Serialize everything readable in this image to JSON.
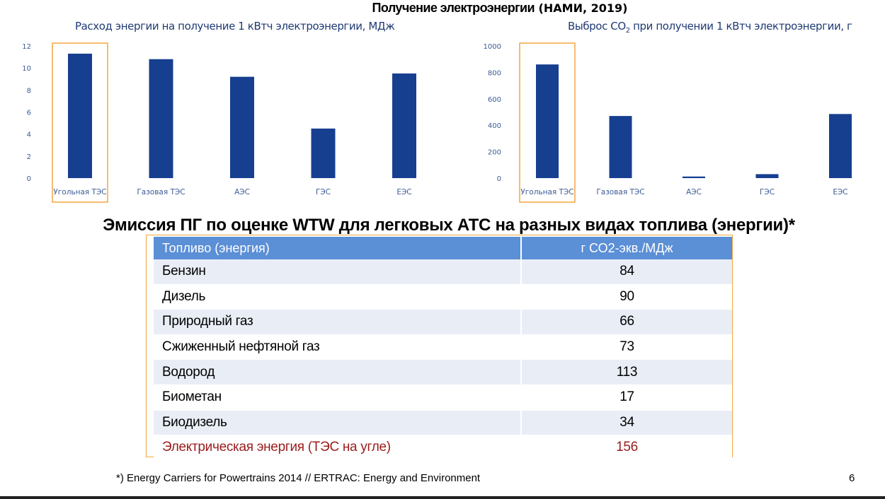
{
  "slide": {
    "title_main": "Получение электроэнергии",
    "title_source": " (НАМИ, 2019)",
    "section_title": "Эмиссия ПГ по оценке WTW для легковых АТС на разных видах топлива (энергии)*",
    "footnote": "*) Energy Carriers for Powertrains 2014 // ERTRAC: Energy and Environment",
    "page_number": "6"
  },
  "chart_data": [
    {
      "type": "bar",
      "title": "Расход энергии на получение 1 кВтч электроэнергии, МДж",
      "categories": [
        "Угольная ТЭС",
        "Газовая ТЭС",
        "АЭС",
        "ГЭС",
        "ЕЭС"
      ],
      "values": [
        11.3,
        10.8,
        9.2,
        4.5,
        9.5
      ],
      "ylim": [
        0,
        12
      ],
      "yticks": [
        "0",
        "2",
        "4",
        "6",
        "8",
        "10",
        "12"
      ],
      "highlight": "Угольная ТЭС",
      "bar_color": "#163f8f",
      "highlight_color": "#f3a63f"
    },
    {
      "type": "bar",
      "title_pre": "Выброс CO",
      "title_sub": "2",
      "title_post": " при получении 1 кВтч электроэнергии, г",
      "categories": [
        "Угольная ТЭС",
        "Газовая ТЭС",
        "АЭС",
        "ГЭС",
        "ЕЭС"
      ],
      "values": [
        860,
        470,
        12,
        30,
        485
      ],
      "ylim": [
        0,
        1000
      ],
      "yticks": [
        "0",
        "200",
        "400",
        "600",
        "800",
        "1000"
      ],
      "highlight": "Угольная ТЭС",
      "bar_color": "#163f8f",
      "highlight_color": "#f3a63f"
    }
  ],
  "table": {
    "header_fuel": "Топливо (энергия)",
    "header_value": "г СО2-экв./МДж",
    "rows": [
      {
        "fuel": "Бензин",
        "value": "84"
      },
      {
        "fuel": "Дизель",
        "value": "90"
      },
      {
        "fuel": "Природный газ",
        "value": "66"
      },
      {
        "fuel": "Сжиженный нефтяной газ",
        "value": "73"
      },
      {
        "fuel": "Водород",
        "value": "113"
      },
      {
        "fuel": "Биометан",
        "value": "17"
      },
      {
        "fuel": "Биодизель",
        "value": "34"
      },
      {
        "fuel": "Электрическая энергия (ТЭС на угле)",
        "value": "156"
      }
    ],
    "highlight_color": "#9b1c1c"
  }
}
